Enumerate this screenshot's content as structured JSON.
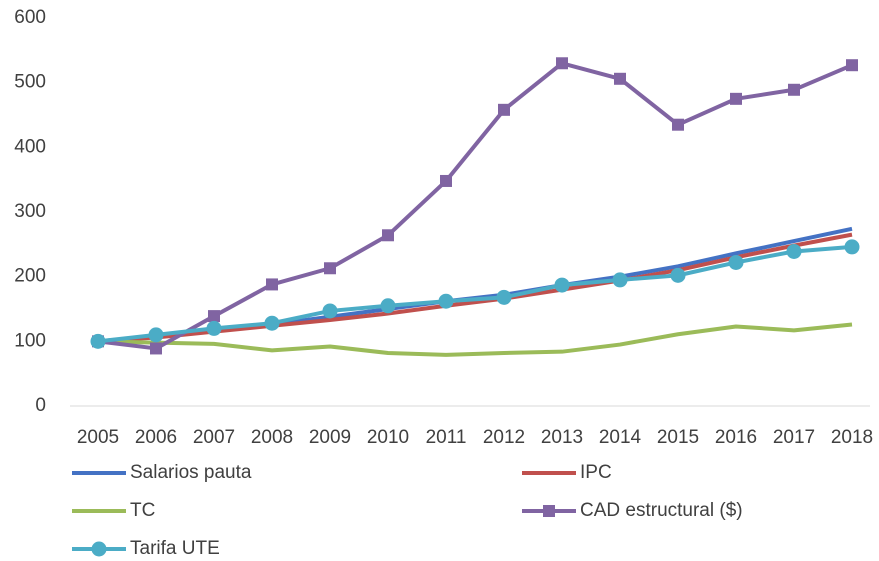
{
  "chart_data": {
    "type": "line",
    "categories": [
      "2005",
      "2006",
      "2007",
      "2008",
      "2009",
      "2010",
      "2011",
      "2012",
      "2013",
      "2014",
      "2015",
      "2016",
      "2017",
      "2018"
    ],
    "ylim": [
      0,
      600
    ],
    "yticks": [
      0,
      100,
      200,
      300,
      400,
      500,
      600
    ],
    "grid": false,
    "legend": "bottom",
    "series": [
      {
        "name": "Salarios pauta",
        "color": "#4472c4",
        "values": [
          100,
          108,
          117,
          126,
          138,
          150,
          162,
          172,
          187,
          200,
          216,
          236,
          255,
          274
        ]
      },
      {
        "name": "IPC",
        "color": "#c0504d",
        "values": [
          100,
          106,
          115,
          124,
          133,
          143,
          155,
          166,
          180,
          194,
          210,
          230,
          248,
          265
        ]
      },
      {
        "name": "TC",
        "color": "#9bbb59",
        "values": [
          100,
          98,
          96,
          86,
          92,
          82,
          79,
          82,
          84,
          95,
          111,
          123,
          117,
          126
        ]
      },
      {
        "name": "CAD estructural ($)",
        "color": "#8064a2",
        "marker": "square",
        "values": [
          100,
          89,
          139,
          188,
          213,
          264,
          348,
          458,
          530,
          506,
          435,
          475,
          489,
          527
        ]
      },
      {
        "name": "Tarifa UTE",
        "color": "#4bacc6",
        "marker": "circle",
        "values": [
          100,
          110,
          120,
          128,
          147,
          155,
          162,
          168,
          187,
          195,
          202,
          222,
          239,
          246
        ]
      }
    ]
  }
}
